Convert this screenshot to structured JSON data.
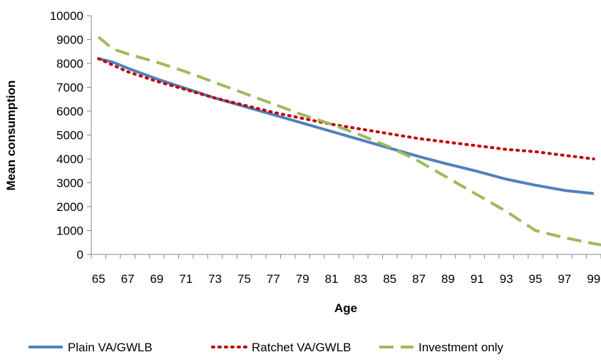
{
  "chart_data": {
    "type": "line",
    "xlabel": "Age",
    "ylabel": "Mean consumption",
    "ylim": [
      0,
      10000
    ],
    "yticks": [
      0,
      1000,
      2000,
      3000,
      4000,
      5000,
      6000,
      7000,
      8000,
      9000,
      10000
    ],
    "xlim": [
      65,
      100
    ],
    "xticks": [
      65,
      67,
      69,
      71,
      73,
      75,
      77,
      79,
      81,
      83,
      85,
      87,
      89,
      91,
      93,
      95,
      97,
      99
    ],
    "grid": false,
    "legend_position": "bottom",
    "series": [
      {
        "name": "Plain VA/GWLB",
        "color": "#4f81bd",
        "style": "solid",
        "x": [
          65,
          66,
          67,
          69,
          71,
          73,
          75,
          77,
          79,
          81,
          83,
          85,
          87,
          89,
          91,
          93,
          95,
          97,
          99
        ],
        "values": [
          8200,
          8050,
          7800,
          7350,
          6950,
          6550,
          6200,
          5850,
          5500,
          5150,
          4800,
          4450,
          4100,
          3780,
          3480,
          3150,
          2900,
          2680,
          2550
        ]
      },
      {
        "name": "Ratchet VA/GWLB",
        "color": "#c00000",
        "style": "dotted",
        "x": [
          65,
          67,
          69,
          71,
          73,
          75,
          77,
          79,
          81,
          83,
          85,
          87,
          89,
          91,
          93,
          95,
          97,
          99
        ],
        "values": [
          8200,
          7650,
          7250,
          6900,
          6550,
          6250,
          5950,
          5700,
          5450,
          5250,
          5050,
          4850,
          4700,
          4550,
          4400,
          4300,
          4150,
          4000
        ]
      },
      {
        "name": "Investment only",
        "color": "#9bbb59",
        "style": "dashed",
        "x": [
          65,
          66,
          67,
          69,
          71,
          73,
          75,
          77,
          79,
          81,
          83,
          85,
          87,
          89,
          91,
          93,
          95,
          97,
          99,
          100
        ],
        "values": [
          9100,
          8600,
          8400,
          8050,
          7650,
          7200,
          6750,
          6300,
          5850,
          5450,
          5000,
          4500,
          3900,
          3200,
          2500,
          1800,
          1000,
          700,
          450,
          350
        ]
      }
    ]
  }
}
